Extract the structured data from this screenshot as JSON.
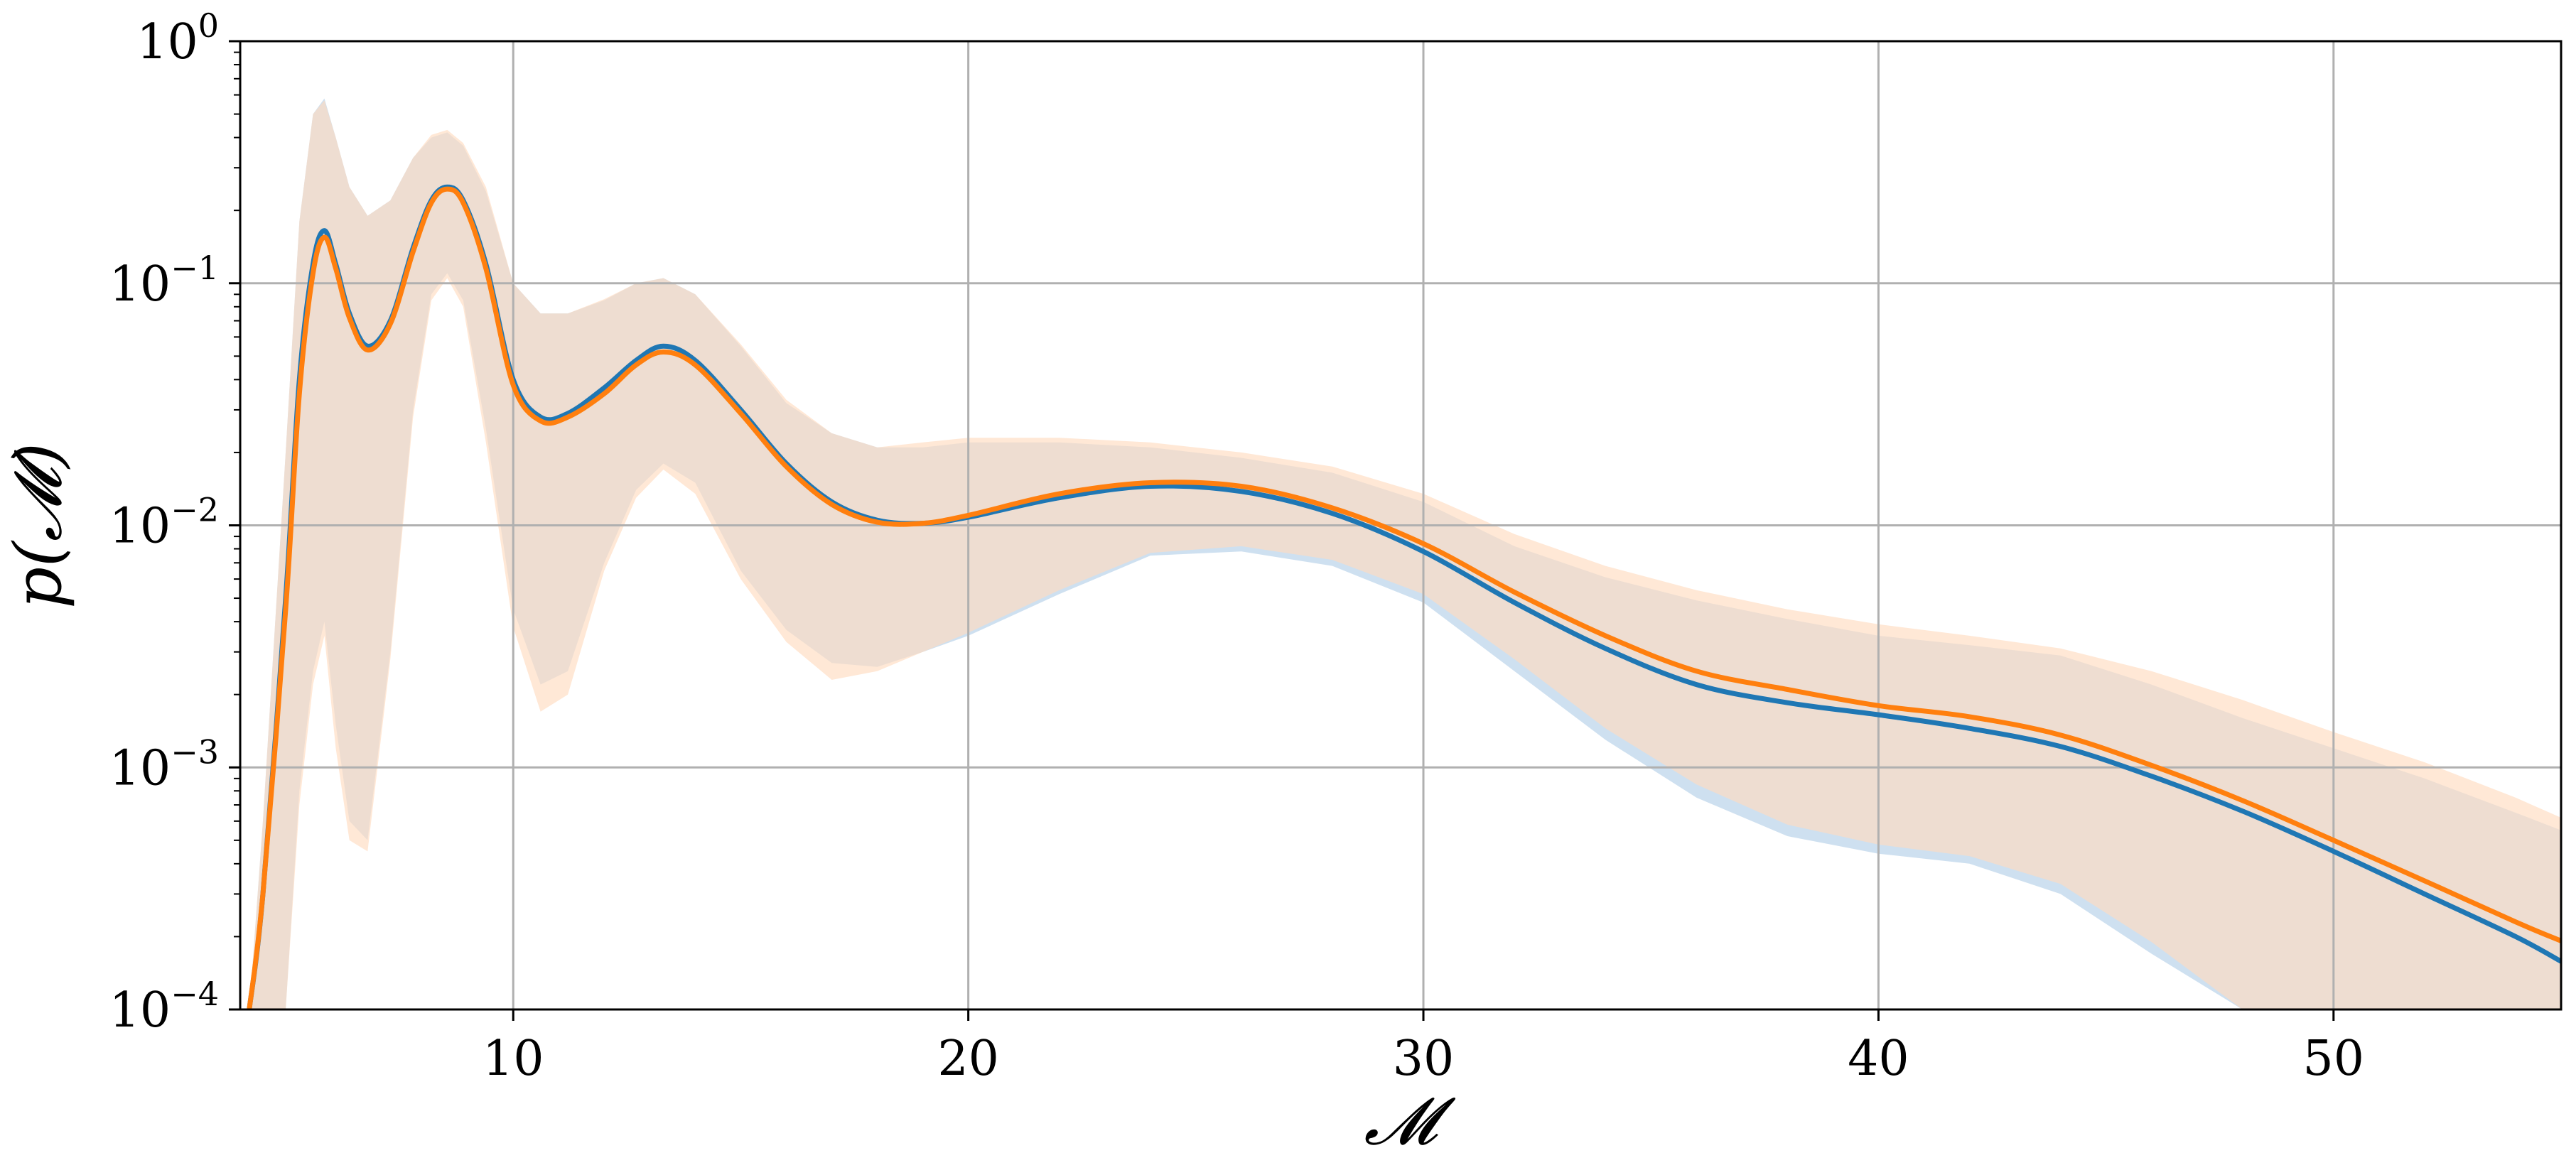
{
  "chart_data": {
    "type": "line",
    "title": "",
    "xlabel": "𝓜",
    "ylabel": "p(𝓜)",
    "xlim": [
      4,
      55
    ],
    "ylim": [
      0.0001,
      1
    ],
    "yscale": "log",
    "grid": true,
    "x_ticks": [
      {
        "value": 10,
        "label": "10"
      },
      {
        "value": 20,
        "label": "20"
      },
      {
        "value": 30,
        "label": "30"
      },
      {
        "value": 40,
        "label": "40"
      },
      {
        "value": 50,
        "label": "50"
      }
    ],
    "y_ticks": [
      {
        "value": 1,
        "base": "10",
        "exp": "0"
      },
      {
        "value": 0.1,
        "base": "10",
        "exp": "−1"
      },
      {
        "value": 0.01,
        "base": "10",
        "exp": "−2"
      },
      {
        "value": 0.001,
        "base": "10",
        "exp": "−3"
      },
      {
        "value": 0.0001,
        "base": "10",
        "exp": "−4"
      }
    ],
    "series": [
      {
        "color": "#1f77b4",
        "band_color": "#c9ddee",
        "x": [
          4.2,
          4.5,
          5.0,
          5.3,
          5.6,
          5.85,
          6.1,
          6.4,
          6.8,
          7.3,
          7.8,
          8.2,
          8.55,
          8.9,
          9.4,
          10.0,
          10.6,
          11.2,
          12.0,
          12.7,
          13.3,
          14.0,
          15.0,
          16.0,
          17.0,
          18.0,
          19.0,
          20.0,
          22.0,
          24.0,
          26.0,
          28.0,
          30.0,
          32.0,
          34.0,
          36.0,
          38.0,
          40.0,
          42.0,
          44.0,
          46.0,
          48.0,
          50.0,
          52.0,
          54.0,
          55.0
        ],
        "y": [
          0.0001,
          0.0003,
          0.005,
          0.04,
          0.12,
          0.165,
          0.12,
          0.075,
          0.055,
          0.07,
          0.14,
          0.22,
          0.25,
          0.22,
          0.12,
          0.04,
          0.028,
          0.029,
          0.037,
          0.048,
          0.055,
          0.048,
          0.03,
          0.018,
          0.0125,
          0.0105,
          0.0102,
          0.0108,
          0.013,
          0.0145,
          0.0138,
          0.0112,
          0.0078,
          0.0048,
          0.0031,
          0.0022,
          0.00185,
          0.00165,
          0.00145,
          0.00122,
          0.00092,
          0.00066,
          0.00045,
          0.0003,
          0.0002,
          0.000158
        ],
        "lower": [
          0.0001,
          0.0001,
          0.0001,
          0.0008,
          0.0025,
          0.004,
          0.0015,
          0.0006,
          0.0005,
          0.003,
          0.03,
          0.09,
          0.11,
          0.085,
          0.025,
          0.0045,
          0.0022,
          0.0025,
          0.007,
          0.014,
          0.018,
          0.015,
          0.0065,
          0.0037,
          0.0027,
          0.0026,
          0.003,
          0.0035,
          0.0052,
          0.0075,
          0.0078,
          0.0068,
          0.0048,
          0.0025,
          0.0013,
          0.00075,
          0.00052,
          0.00044,
          0.0004,
          0.0003,
          0.00017,
          0.0001,
          0.0001,
          0.0001,
          0.0001,
          0.0001
        ],
        "upper": [
          0.0001,
          0.0006,
          0.02,
          0.18,
          0.5,
          0.58,
          0.4,
          0.25,
          0.19,
          0.22,
          0.33,
          0.4,
          0.42,
          0.37,
          0.24,
          0.1,
          0.075,
          0.075,
          0.085,
          0.1,
          0.105,
          0.09,
          0.055,
          0.032,
          0.024,
          0.021,
          0.021,
          0.022,
          0.022,
          0.021,
          0.019,
          0.0165,
          0.0125,
          0.0082,
          0.0061,
          0.0049,
          0.0041,
          0.0035,
          0.0032,
          0.0029,
          0.0022,
          0.0016,
          0.0012,
          0.0009,
          0.00065,
          0.00055
        ]
      },
      {
        "color": "#ff7f0e",
        "band_color": "#ffdcc0",
        "x": [
          4.2,
          4.5,
          5.0,
          5.3,
          5.6,
          5.85,
          6.1,
          6.4,
          6.8,
          7.3,
          7.8,
          8.2,
          8.55,
          8.9,
          9.4,
          10.0,
          10.6,
          11.2,
          12.0,
          12.7,
          13.3,
          14.0,
          15.0,
          16.0,
          17.0,
          18.0,
          19.0,
          20.0,
          22.0,
          24.0,
          26.0,
          28.0,
          30.0,
          32.0,
          34.0,
          36.0,
          38.0,
          40.0,
          42.0,
          44.0,
          46.0,
          48.0,
          50.0,
          52.0,
          54.0,
          55.0
        ],
        "y": [
          0.0001,
          0.0003,
          0.0045,
          0.035,
          0.11,
          0.155,
          0.115,
          0.072,
          0.053,
          0.068,
          0.135,
          0.215,
          0.245,
          0.215,
          0.115,
          0.038,
          0.027,
          0.028,
          0.035,
          0.046,
          0.052,
          0.046,
          0.029,
          0.0175,
          0.0122,
          0.0103,
          0.0102,
          0.011,
          0.0135,
          0.015,
          0.0145,
          0.0118,
          0.0084,
          0.0053,
          0.0035,
          0.0025,
          0.0021,
          0.0018,
          0.00162,
          0.00136,
          0.00102,
          0.00073,
          0.0005,
          0.00034,
          0.00023,
          0.000192
        ],
        "lower": [
          0.0001,
          0.0001,
          0.0001,
          0.0007,
          0.0022,
          0.0035,
          0.0012,
          0.0005,
          0.00045,
          0.0028,
          0.028,
          0.085,
          0.105,
          0.08,
          0.022,
          0.0038,
          0.0017,
          0.002,
          0.0065,
          0.013,
          0.017,
          0.0135,
          0.006,
          0.0033,
          0.0023,
          0.0025,
          0.003,
          0.0036,
          0.0054,
          0.0077,
          0.0082,
          0.0072,
          0.0052,
          0.0028,
          0.00145,
          0.00085,
          0.00058,
          0.00048,
          0.00043,
          0.00033,
          0.00019,
          0.0001,
          0.0001,
          0.0001,
          0.0001,
          0.0001
        ],
        "upper": [
          0.0001,
          0.0006,
          0.02,
          0.18,
          0.5,
          0.57,
          0.4,
          0.25,
          0.19,
          0.22,
          0.33,
          0.41,
          0.43,
          0.38,
          0.25,
          0.1,
          0.075,
          0.075,
          0.086,
          0.1,
          0.105,
          0.09,
          0.056,
          0.033,
          0.024,
          0.021,
          0.022,
          0.023,
          0.023,
          0.022,
          0.02,
          0.0175,
          0.0135,
          0.0092,
          0.0068,
          0.0054,
          0.0045,
          0.0039,
          0.0035,
          0.0031,
          0.0025,
          0.0019,
          0.0014,
          0.00105,
          0.00075,
          0.00062
        ]
      }
    ]
  }
}
